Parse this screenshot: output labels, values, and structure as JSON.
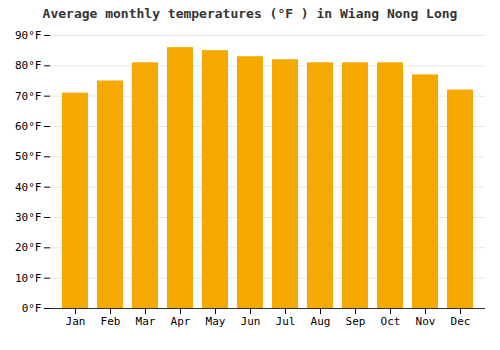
{
  "chart_data": {
    "type": "bar",
    "title": "Average monthly temperatures (°F ) in Wiang Nong Long",
    "categories": [
      "Jan",
      "Feb",
      "Mar",
      "Apr",
      "May",
      "Jun",
      "Jul",
      "Aug",
      "Sep",
      "Oct",
      "Nov",
      "Dec"
    ],
    "values": [
      71,
      75,
      81,
      86,
      85,
      83,
      82,
      81,
      81,
      81,
      77,
      72
    ],
    "color": "#F5A800",
    "ylim": [
      0,
      90
    ],
    "yticks": [
      {
        "value": 0,
        "label": "0°F"
      },
      {
        "value": 10,
        "label": "10°F"
      },
      {
        "value": 20,
        "label": "20°F"
      },
      {
        "value": 30,
        "label": "30°F"
      },
      {
        "value": 40,
        "label": "40°F"
      },
      {
        "value": 50,
        "label": "50°F"
      },
      {
        "value": 60,
        "label": "60°F"
      },
      {
        "value": 70,
        "label": "70°F"
      },
      {
        "value": 80,
        "label": "80°F"
      },
      {
        "value": 90,
        "label": "90°F"
      }
    ],
    "grid": true
  }
}
